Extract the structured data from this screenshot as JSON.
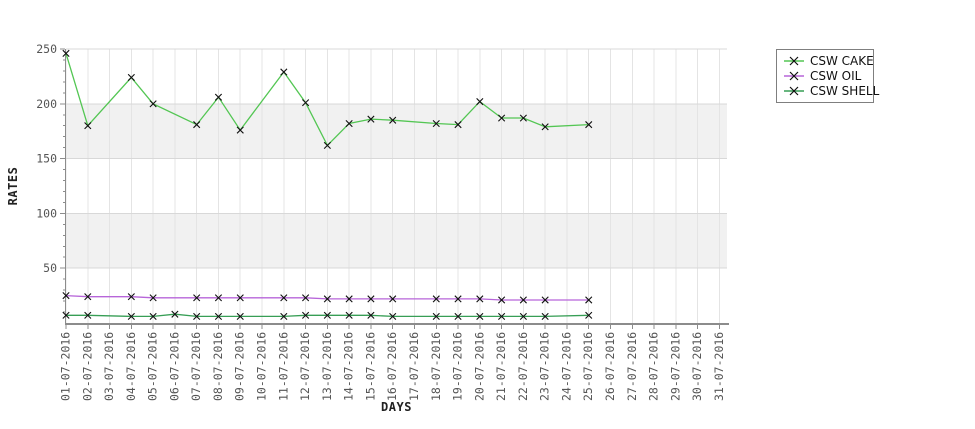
{
  "chart_data": {
    "type": "line",
    "title": "",
    "xlabel": "DAYS",
    "ylabel": "RATES",
    "ylim": [
      0,
      250
    ],
    "y_ticks": [
      50,
      100,
      150,
      200,
      250
    ],
    "grid": true,
    "shaded_bands": [
      [
        50,
        100
      ],
      [
        150,
        200
      ]
    ],
    "legend_position": "outside-top-right",
    "x_categories": [
      "01-07-2016",
      "02-07-2016",
      "03-07-2016",
      "04-07-2016",
      "05-07-2016",
      "06-07-2016",
      "07-07-2016",
      "08-07-2016",
      "09-07-2016",
      "10-07-2016",
      "11-07-2016",
      "12-07-2016",
      "13-07-2016",
      "14-07-2016",
      "15-07-2016",
      "16-07-2016",
      "17-07-2016",
      "18-07-2016",
      "19-07-2016",
      "20-07-2016",
      "21-07-2016",
      "22-07-2016",
      "23-07-2016",
      "24-07-2016",
      "25-07-2016",
      "26-07-2016",
      "27-07-2016",
      "28-07-2016",
      "29-07-2016",
      "30-07-2016",
      "31-07-2016"
    ],
    "series": [
      {
        "name": "CSW CAKE",
        "color": "#53c653",
        "marker": "x",
        "dates": [
          "01-07-2016",
          "02-07-2016",
          "04-07-2016",
          "05-07-2016",
          "07-07-2016",
          "08-07-2016",
          "09-07-2016",
          "11-07-2016",
          "12-07-2016",
          "13-07-2016",
          "14-07-2016",
          "15-07-2016",
          "16-07-2016",
          "18-07-2016",
          "19-07-2016",
          "20-07-2016",
          "21-07-2016",
          "22-07-2016",
          "23-07-2016",
          "25-07-2016"
        ],
        "values": [
          246,
          180,
          224,
          200,
          181,
          206,
          176,
          229,
          201,
          162,
          182,
          186,
          185,
          182,
          181,
          202,
          187,
          187,
          179,
          181
        ]
      },
      {
        "name": "CSW OIL",
        "color": "#b765d9",
        "marker": "x",
        "dates": [
          "01-07-2016",
          "02-07-2016",
          "04-07-2016",
          "05-07-2016",
          "07-07-2016",
          "08-07-2016",
          "09-07-2016",
          "11-07-2016",
          "12-07-2016",
          "13-07-2016",
          "14-07-2016",
          "15-07-2016",
          "16-07-2016",
          "18-07-2016",
          "19-07-2016",
          "20-07-2016",
          "21-07-2016",
          "22-07-2016",
          "23-07-2016",
          "25-07-2016"
        ],
        "values": [
          25,
          24,
          24,
          23,
          23,
          23,
          23,
          23,
          23,
          22,
          22,
          22,
          22,
          22,
          22,
          22,
          21,
          21,
          21,
          21
        ]
      },
      {
        "name": "CSW SHELL",
        "color": "#379e55",
        "marker": "x",
        "dates": [
          "01-07-2016",
          "02-07-2016",
          "04-07-2016",
          "05-07-2016",
          "06-07-2016",
          "07-07-2016",
          "08-07-2016",
          "09-07-2016",
          "11-07-2016",
          "12-07-2016",
          "13-07-2016",
          "14-07-2016",
          "15-07-2016",
          "16-07-2016",
          "18-07-2016",
          "19-07-2016",
          "20-07-2016",
          "21-07-2016",
          "22-07-2016",
          "23-07-2016",
          "25-07-2016"
        ],
        "values": [
          7,
          7,
          6,
          6,
          8,
          6,
          6,
          6,
          6,
          7,
          7,
          7,
          7,
          6,
          6,
          6,
          6,
          6,
          6,
          6,
          7
        ]
      }
    ],
    "colors": {
      "band_fill": "#f1f1f1",
      "h_grid": "#d8d8d8",
      "v_grid": "#e4e4e4",
      "axis": "#8c8c8c",
      "marker_stroke": "#111111"
    }
  }
}
